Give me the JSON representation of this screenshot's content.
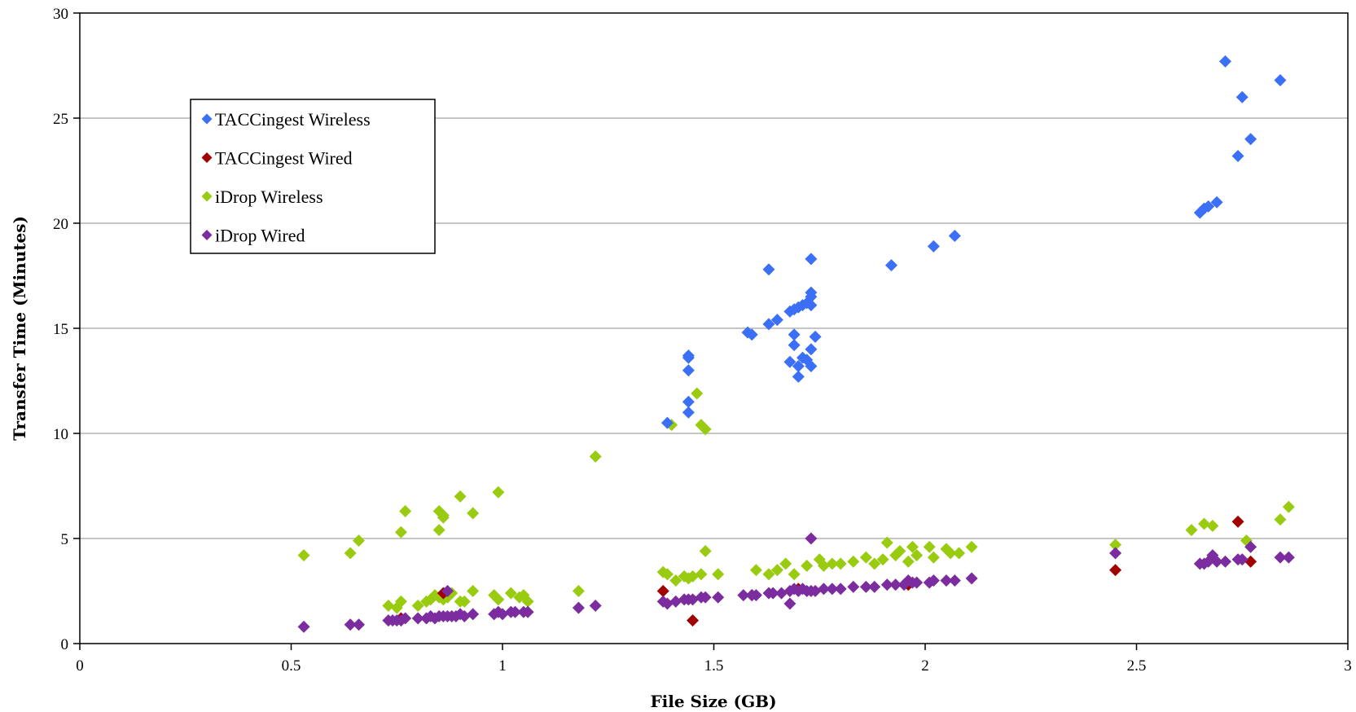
{
  "chart_data": {
    "type": "scatter",
    "title": "",
    "xlabel": "File Size (GB)",
    "ylabel": "Transfer Time (Minutes)",
    "xlim": [
      0,
      3
    ],
    "ylim": [
      0,
      30
    ],
    "xticks": [
      0,
      0.5,
      1,
      1.5,
      2,
      2.5,
      3
    ],
    "yticks": [
      0,
      5,
      10,
      15,
      20,
      25,
      30
    ],
    "xtick_labels": [
      "0",
      "0.5",
      "1",
      "1.5",
      "2",
      "2.5",
      "3"
    ],
    "ytick_labels": [
      "0",
      "5",
      "10",
      "15",
      "20",
      "25",
      "30"
    ],
    "grid": "horizontal",
    "legend_position": "top-left",
    "series": [
      {
        "name": "TACCingest Wireless",
        "color": "#3b6ff5",
        "marker": "diamond",
        "x": [
          1.39,
          1.44,
          1.44,
          1.44,
          1.44,
          1.44,
          1.58,
          1.59,
          1.63,
          1.63,
          1.65,
          1.68,
          1.69,
          1.7,
          1.71,
          1.72,
          1.73,
          1.73,
          1.73,
          1.73,
          1.68,
          1.69,
          1.69,
          1.7,
          1.71,
          1.72,
          1.73,
          1.73,
          1.74,
          1.7,
          1.92,
          2.02,
          2.07,
          2.65,
          2.66,
          2.67,
          2.69,
          2.71,
          2.74,
          2.75,
          2.77,
          2.84
        ],
        "y": [
          10.5,
          13.7,
          13.6,
          13.0,
          11.5,
          11.0,
          14.8,
          14.7,
          17.8,
          15.2,
          15.4,
          15.8,
          15.9,
          16.0,
          16.1,
          16.2,
          16.5,
          16.7,
          18.3,
          16.1,
          13.4,
          14.7,
          14.2,
          13.2,
          13.6,
          13.5,
          14.0,
          13.2,
          14.6,
          12.7,
          18.0,
          18.9,
          19.4,
          20.5,
          20.7,
          20.8,
          21.0,
          27.7,
          23.2,
          26.0,
          24.0,
          26.8
        ]
      },
      {
        "name": "TACCingest Wired",
        "color": "#a00000",
        "marker": "diamond",
        "x": [
          0.76,
          0.86,
          1.38,
          1.45,
          1.59,
          1.7,
          1.96,
          2.45,
          2.74,
          2.77
        ],
        "y": [
          1.2,
          2.4,
          2.5,
          1.1,
          2.3,
          2.6,
          2.8,
          3.5,
          5.8,
          3.9
        ]
      },
      {
        "name": "iDrop Wireless",
        "color": "#99cc11",
        "marker": "diamond",
        "x": [
          0.53,
          0.64,
          0.66,
          0.73,
          0.75,
          0.76,
          0.76,
          0.77,
          0.8,
          0.82,
          0.83,
          0.84,
          0.85,
          0.85,
          0.86,
          0.86,
          0.87,
          0.88,
          0.9,
          0.91,
          0.93,
          0.98,
          0.99,
          1.02,
          1.04,
          1.05,
          1.06,
          0.85,
          0.86,
          0.9,
          0.93,
          0.99,
          1.18,
          1.22,
          1.38,
          1.39,
          1.4,
          1.41,
          1.43,
          1.44,
          1.45,
          1.46,
          1.47,
          1.47,
          1.48,
          1.48,
          1.51,
          1.6,
          1.63,
          1.65,
          1.67,
          1.69,
          1.72,
          1.75,
          1.76,
          1.78,
          1.8,
          1.83,
          1.86,
          1.88,
          1.9,
          1.91,
          1.93,
          1.94,
          1.96,
          1.97,
          1.98,
          2.01,
          2.02,
          2.05,
          2.06,
          2.08,
          2.11,
          2.45,
          2.63,
          2.66,
          2.68,
          2.76,
          2.84,
          2.86
        ],
        "y": [
          4.2,
          4.3,
          4.9,
          1.8,
          1.7,
          2.0,
          5.3,
          6.3,
          1.8,
          2.0,
          2.1,
          2.3,
          5.4,
          6.3,
          6.0,
          6.1,
          2.2,
          2.4,
          7.0,
          2.0,
          6.2,
          2.3,
          7.2,
          2.4,
          2.2,
          2.3,
          2.0,
          2.2,
          2.1,
          2.0,
          2.5,
          2.1,
          2.5,
          8.9,
          3.4,
          3.3,
          10.4,
          3.0,
          3.2,
          3.1,
          3.2,
          11.9,
          3.3,
          10.4,
          10.2,
          4.4,
          3.3,
          3.5,
          3.3,
          3.5,
          3.8,
          3.3,
          3.7,
          4.0,
          3.7,
          3.8,
          3.8,
          3.9,
          4.1,
          3.8,
          4.0,
          4.8,
          4.2,
          4.4,
          3.9,
          4.6,
          4.2,
          4.6,
          4.1,
          4.5,
          4.3,
          4.3,
          4.6,
          4.7,
          5.4,
          5.7,
          5.6,
          4.9,
          5.9,
          6.5
        ]
      },
      {
        "name": "iDrop Wired",
        "color": "#7b2c9e",
        "marker": "diamond",
        "x": [
          0.53,
          0.64,
          0.66,
          0.73,
          0.74,
          0.75,
          0.76,
          0.77,
          0.8,
          0.82,
          0.83,
          0.84,
          0.85,
          0.86,
          0.87,
          0.88,
          0.89,
          0.9,
          0.91,
          0.93,
          0.98,
          0.99,
          1.0,
          1.02,
          1.03,
          1.05,
          1.06,
          0.87,
          1.18,
          1.22,
          1.38,
          1.39,
          1.41,
          1.43,
          1.44,
          1.45,
          1.47,
          1.48,
          1.51,
          1.57,
          1.59,
          1.6,
          1.63,
          1.64,
          1.66,
          1.68,
          1.69,
          1.7,
          1.71,
          1.72,
          1.73,
          1.74,
          1.76,
          1.78,
          1.8,
          1.83,
          1.86,
          1.88,
          1.91,
          1.93,
          1.95,
          1.96,
          1.97,
          1.98,
          2.01,
          2.02,
          2.05,
          2.07,
          2.11,
          1.68,
          1.73,
          2.45,
          2.65,
          2.66,
          2.67,
          2.68,
          2.69,
          2.71,
          2.74,
          2.75,
          2.77,
          2.84,
          2.86
        ],
        "y": [
          0.8,
          0.9,
          0.9,
          1.1,
          1.1,
          1.1,
          1.1,
          1.2,
          1.2,
          1.2,
          1.3,
          1.2,
          1.3,
          1.3,
          1.3,
          1.3,
          1.3,
          1.4,
          1.3,
          1.4,
          1.4,
          1.5,
          1.4,
          1.5,
          1.5,
          1.5,
          1.5,
          2.5,
          1.7,
          1.8,
          2.0,
          1.9,
          2.0,
          2.1,
          2.1,
          2.1,
          2.2,
          2.2,
          2.2,
          2.3,
          2.3,
          2.3,
          2.4,
          2.4,
          2.4,
          2.5,
          2.6,
          2.5,
          2.6,
          2.5,
          2.5,
          2.5,
          2.6,
          2.6,
          2.6,
          2.7,
          2.7,
          2.7,
          2.8,
          2.8,
          2.8,
          3.0,
          2.9,
          2.9,
          2.9,
          3.0,
          3.0,
          3.0,
          3.1,
          1.9,
          5.0,
          4.3,
          3.8,
          3.8,
          3.9,
          4.2,
          3.9,
          3.9,
          4.0,
          4.0,
          4.6,
          4.1,
          4.1
        ]
      }
    ]
  }
}
